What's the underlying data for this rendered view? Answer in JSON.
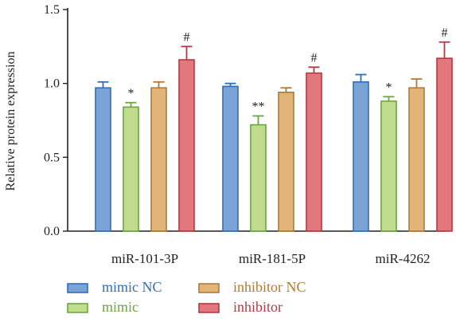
{
  "chart_data": {
    "type": "bar",
    "ylabel": "Relative protein expression",
    "xlabel": "",
    "ylim": [
      0,
      1.5
    ],
    "yticks": [
      0.0,
      0.5,
      1.0,
      1.5
    ],
    "ytick_labels": [
      "0.0",
      "0.5",
      "1.0",
      "1.5"
    ],
    "categories": [
      "miR-101-3P",
      "miR-181-5P",
      "miR-4262"
    ],
    "series": [
      {
        "name": "mimic NC",
        "fill": "#7BA3D6",
        "stroke": "#2F6FB5",
        "text_color": "#2F6FB5",
        "values": [
          0.97,
          0.98,
          1.01
        ],
        "errors": [
          0.04,
          0.02,
          0.05
        ],
        "annotations": [
          "",
          "",
          ""
        ]
      },
      {
        "name": "mimic",
        "fill": "#BFDD8C",
        "stroke": "#6DA544",
        "text_color": "#6DA544",
        "values": [
          0.84,
          0.72,
          0.88
        ],
        "errors": [
          0.03,
          0.06,
          0.03
        ],
        "annotations": [
          "*",
          "**",
          "*"
        ]
      },
      {
        "name": "inhibitor NC",
        "fill": "#E3B478",
        "stroke": "#B07A35",
        "text_color": "#B07A35",
        "values": [
          0.97,
          0.94,
          0.97
        ],
        "errors": [
          0.04,
          0.03,
          0.06
        ],
        "annotations": [
          "",
          "",
          ""
        ]
      },
      {
        "name": "inhibitor",
        "fill": "#E2787E",
        "stroke": "#B23A43",
        "text_color": "#B23A43",
        "values": [
          1.16,
          1.07,
          1.17
        ],
        "errors": [
          0.09,
          0.04,
          0.11
        ],
        "annotations": [
          "#",
          "#",
          "#"
        ]
      }
    ],
    "grid": false,
    "legend_position": "bottom"
  }
}
